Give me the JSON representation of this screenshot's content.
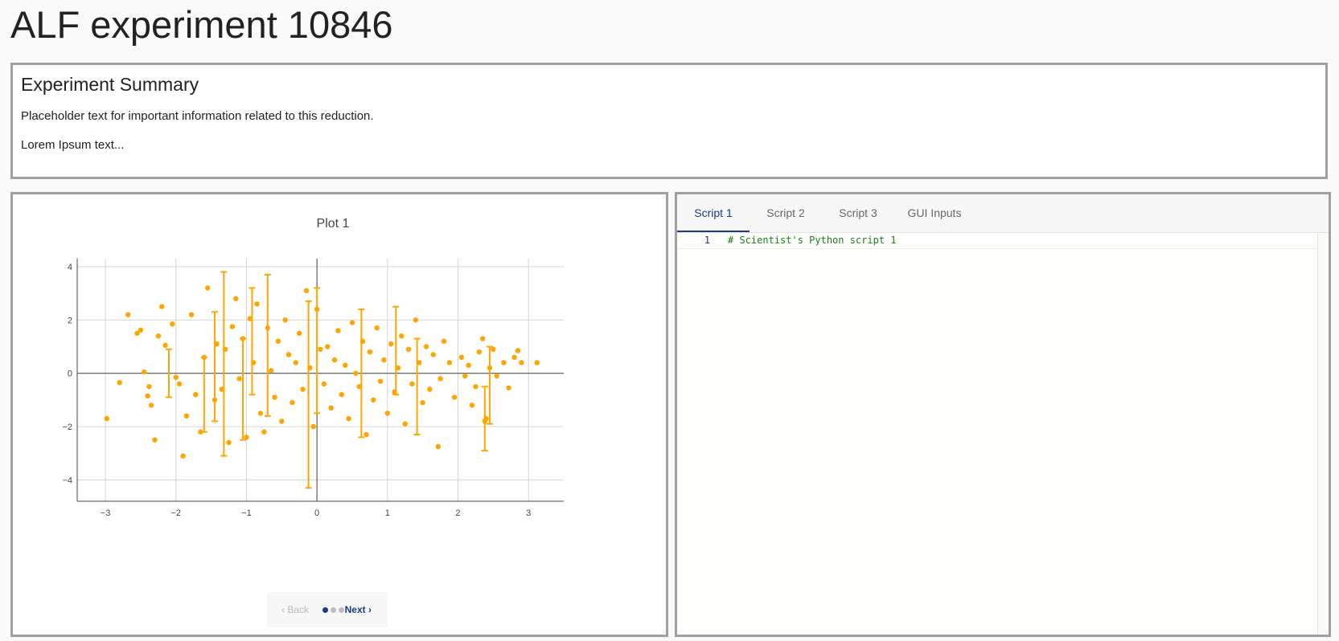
{
  "page": {
    "title": "ALF experiment 10846"
  },
  "summary": {
    "title": "Experiment Summary",
    "line1": "Placeholder text for important information related to this reduction.",
    "line2": "Lorem Ipsum text..."
  },
  "plot_panel": {
    "pager": {
      "back_label": "Back",
      "next_label": "Next",
      "page_count": 3,
      "current_page": 1
    }
  },
  "script_panel": {
    "tabs": [
      {
        "label": "Script 1",
        "active": true
      },
      {
        "label": "Script 2",
        "active": false
      },
      {
        "label": "Script 3",
        "active": false
      },
      {
        "label": "GUI Inputs",
        "active": false
      }
    ],
    "editor": {
      "lines": [
        {
          "number": "1",
          "code": "# Scientist's Python script 1"
        }
      ]
    }
  },
  "colors": {
    "marker": "#FFA500",
    "accent": "#1a3a8a",
    "comment": "#1a7f1a"
  },
  "chart_data": {
    "type": "scatter",
    "title": "Plot 1",
    "xlabel": "",
    "ylabel": "",
    "xlim": [
      -3.4,
      3.5
    ],
    "ylim": [
      -4.8,
      4.3
    ],
    "xticks": [
      -3,
      -2,
      -1,
      0,
      1,
      2,
      3
    ],
    "yticks": [
      -4,
      -2,
      0,
      2,
      4
    ],
    "xtick_labels": [
      "−3",
      "−2",
      "−1",
      "0",
      "1",
      "2",
      "3"
    ],
    "ytick_labels": [
      "−4",
      "−2",
      "0",
      "2",
      "4"
    ],
    "grid": true,
    "legend": "none",
    "series": [
      {
        "marker_color": "#FFA500",
        "points": [
          {
            "x": -2.98,
            "y": -1.7
          },
          {
            "x": -2.8,
            "y": -0.35
          },
          {
            "x": -2.68,
            "y": 2.2
          },
          {
            "x": -2.55,
            "y": 1.5
          },
          {
            "x": -2.5,
            "y": 1.62
          },
          {
            "x": -2.45,
            "y": 0.05
          },
          {
            "x": -2.4,
            "y": -0.85
          },
          {
            "x": -2.38,
            "y": -0.5
          },
          {
            "x": -2.35,
            "y": -1.2
          },
          {
            "x": -2.3,
            "y": -2.5
          },
          {
            "x": -2.25,
            "y": 1.4
          },
          {
            "x": -2.2,
            "y": 2.5
          },
          {
            "x": -2.15,
            "y": 1.05
          },
          {
            "x": -2.05,
            "y": 1.85
          },
          {
            "x": -2.0,
            "y": -0.15
          },
          {
            "x": -1.95,
            "y": -0.4
          },
          {
            "x": -1.9,
            "y": -3.1
          },
          {
            "x": -1.85,
            "y": -1.6
          },
          {
            "x": -1.78,
            "y": 2.2
          },
          {
            "x": -1.72,
            "y": -0.8
          },
          {
            "x": -1.65,
            "y": -2.2
          },
          {
            "x": -1.6,
            "y": 0.6
          },
          {
            "x": -1.55,
            "y": 3.2
          },
          {
            "x": -1.45,
            "y": -1.0
          },
          {
            "x": -1.42,
            "y": 1.1
          },
          {
            "x": -1.35,
            "y": -0.6
          },
          {
            "x": -1.3,
            "y": 0.9
          },
          {
            "x": -1.25,
            "y": -2.6
          },
          {
            "x": -1.2,
            "y": 1.75
          },
          {
            "x": -1.15,
            "y": 2.8
          },
          {
            "x": -1.1,
            "y": -0.2
          },
          {
            "x": -1.05,
            "y": 1.3
          },
          {
            "x": -1.0,
            "y": -2.4
          },
          {
            "x": -0.95,
            "y": 2.05
          },
          {
            "x": -0.9,
            "y": 0.4
          },
          {
            "x": -0.85,
            "y": 2.6
          },
          {
            "x": -0.8,
            "y": -1.5
          },
          {
            "x": -0.75,
            "y": -2.2
          },
          {
            "x": -0.7,
            "y": 1.7
          },
          {
            "x": -0.65,
            "y": 0.1
          },
          {
            "x": -0.6,
            "y": -0.9
          },
          {
            "x": -0.55,
            "y": 1.2
          },
          {
            "x": -0.5,
            "y": -1.8
          },
          {
            "x": -0.45,
            "y": 2.0
          },
          {
            "x": -0.4,
            "y": 0.7
          },
          {
            "x": -0.35,
            "y": -1.1
          },
          {
            "x": -0.3,
            "y": 0.4
          },
          {
            "x": -0.25,
            "y": 1.5
          },
          {
            "x": -0.2,
            "y": -0.6
          },
          {
            "x": -0.15,
            "y": 3.1
          },
          {
            "x": -0.1,
            "y": 0.2
          },
          {
            "x": -0.05,
            "y": -2.0
          },
          {
            "x": 0.0,
            "y": 2.4
          },
          {
            "x": 0.05,
            "y": 0.9
          },
          {
            "x": 0.1,
            "y": -0.4
          },
          {
            "x": 0.15,
            "y": 1.0
          },
          {
            "x": 0.2,
            "y": -1.3
          },
          {
            "x": 0.25,
            "y": 0.5
          },
          {
            "x": 0.3,
            "y": 1.6
          },
          {
            "x": 0.35,
            "y": -0.8
          },
          {
            "x": 0.4,
            "y": 0.3
          },
          {
            "x": 0.45,
            "y": -1.7
          },
          {
            "x": 0.5,
            "y": 1.9
          },
          {
            "x": 0.55,
            "y": 0.0
          },
          {
            "x": 0.6,
            "y": -0.5
          },
          {
            "x": 0.65,
            "y": 1.2
          },
          {
            "x": 0.7,
            "y": -2.3
          },
          {
            "x": 0.75,
            "y": 0.8
          },
          {
            "x": 0.8,
            "y": -1.0
          },
          {
            "x": 0.85,
            "y": 1.7
          },
          {
            "x": 0.9,
            "y": -0.3
          },
          {
            "x": 0.95,
            "y": 0.5
          },
          {
            "x": 1.0,
            "y": -1.5
          },
          {
            "x": 1.05,
            "y": 1.1
          },
          {
            "x": 1.1,
            "y": -0.7
          },
          {
            "x": 1.15,
            "y": 0.2
          },
          {
            "x": 1.2,
            "y": 1.4
          },
          {
            "x": 1.25,
            "y": -1.9
          },
          {
            "x": 1.3,
            "y": 0.9
          },
          {
            "x": 1.35,
            "y": -0.4
          },
          {
            "x": 1.4,
            "y": 2.0
          },
          {
            "x": 1.45,
            "y": 0.4
          },
          {
            "x": 1.5,
            "y": -1.1
          },
          {
            "x": 1.55,
            "y": 1.0
          },
          {
            "x": 1.6,
            "y": -0.6
          },
          {
            "x": 1.65,
            "y": 0.7
          },
          {
            "x": 1.72,
            "y": -2.75
          },
          {
            "x": 1.75,
            "y": -0.2
          },
          {
            "x": 1.8,
            "y": 1.2
          },
          {
            "x": 1.88,
            "y": 0.4
          },
          {
            "x": 1.95,
            "y": -0.9
          },
          {
            "x": 2.05,
            "y": 0.6
          },
          {
            "x": 2.1,
            "y": -0.1
          },
          {
            "x": 2.15,
            "y": 0.3
          },
          {
            "x": 2.2,
            "y": -1.2
          },
          {
            "x": 2.25,
            "y": -0.5
          },
          {
            "x": 2.3,
            "y": 0.8
          },
          {
            "x": 2.35,
            "y": 1.3
          },
          {
            "x": 2.38,
            "y": -1.8
          },
          {
            "x": 2.4,
            "y": -1.7
          },
          {
            "x": 2.45,
            "y": 0.2
          },
          {
            "x": 2.5,
            "y": 0.9
          },
          {
            "x": 2.55,
            "y": -0.1
          },
          {
            "x": 2.65,
            "y": 0.4
          },
          {
            "x": 2.72,
            "y": -0.55
          },
          {
            "x": 2.8,
            "y": 0.6
          },
          {
            "x": 2.85,
            "y": 0.85
          },
          {
            "x": 2.9,
            "y": 0.4
          },
          {
            "x": 3.12,
            "y": 0.4
          }
        ],
        "error_bars": [
          {
            "x": -2.1,
            "yerr_low": -0.9,
            "yerr_high": 0.9
          },
          {
            "x": -1.6,
            "yerr_low": -2.2,
            "yerr_high": 0.6
          },
          {
            "x": -1.45,
            "yerr_low": -1.8,
            "yerr_high": 2.3
          },
          {
            "x": -1.32,
            "yerr_low": -3.1,
            "yerr_high": 3.8
          },
          {
            "x": -1.05,
            "yerr_low": -2.5,
            "yerr_high": 1.3
          },
          {
            "x": -0.92,
            "yerr_low": -0.8,
            "yerr_high": 3.2
          },
          {
            "x": -0.7,
            "yerr_low": -1.6,
            "yerr_high": 3.7
          },
          {
            "x": -0.12,
            "yerr_low": -4.3,
            "yerr_high": 2.7
          },
          {
            "x": 0.0,
            "yerr_low": -1.5,
            "yerr_high": 3.2
          },
          {
            "x": 0.63,
            "yerr_low": -2.4,
            "yerr_high": 2.4
          },
          {
            "x": 1.12,
            "yerr_low": -0.8,
            "yerr_high": 2.5
          },
          {
            "x": 1.42,
            "yerr_low": -2.3,
            "yerr_high": 1.3
          },
          {
            "x": 2.38,
            "yerr_low": -2.9,
            "yerr_high": -0.5
          },
          {
            "x": 2.45,
            "yerr_low": -1.9,
            "yerr_high": 1.0
          }
        ]
      }
    ]
  }
}
